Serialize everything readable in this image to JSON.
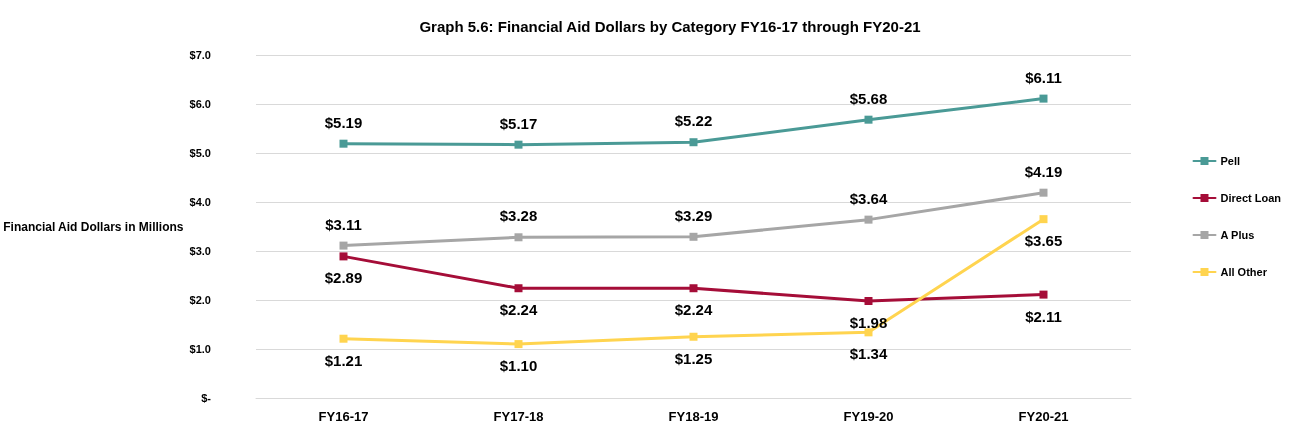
{
  "chart_data": {
    "type": "line",
    "title": "Graph 5.6: Financial Aid Dollars by Category FY16-17 through FY20-21",
    "ylabel": "Financial Aid Dollars in Millions",
    "categories": [
      "FY16-17",
      "FY17-18",
      "FY18-19",
      "FY19-20",
      "FY20-21"
    ],
    "series": [
      {
        "name": "Pell",
        "color": "#4a9a96",
        "values": [
          5.19,
          5.17,
          5.22,
          5.68,
          6.11
        ],
        "value_labels": [
          "$5.19",
          "$5.17",
          "$5.22",
          "$5.68",
          "$6.11"
        ]
      },
      {
        "name": "Direct Loan",
        "color": "#a50d38",
        "values": [
          2.89,
          2.24,
          2.24,
          1.98,
          2.11
        ],
        "value_labels": [
          "$2.89",
          "$2.24",
          "$2.24",
          "$1.98",
          "$2.11"
        ]
      },
      {
        "name": "A Plus",
        "color": "#a6a6a6",
        "values": [
          3.11,
          3.28,
          3.29,
          3.64,
          4.19
        ],
        "value_labels": [
          "$3.11",
          "$3.28",
          "$3.29",
          "$3.64",
          "$4.19"
        ]
      },
      {
        "name": "All Other",
        "color": "#ffd44f",
        "values": [
          1.21,
          1.1,
          1.25,
          1.34,
          3.65
        ],
        "value_labels": [
          "$1.21",
          "$1.10",
          "$1.25",
          "$1.34",
          "$3.65"
        ]
      }
    ],
    "ylim": [
      0,
      7
    ],
    "yticks": [
      {
        "value": 0,
        "label": "$-"
      },
      {
        "value": 1,
        "label": "$1.0"
      },
      {
        "value": 2,
        "label": "$2.0"
      },
      {
        "value": 3,
        "label": "$3.0"
      },
      {
        "value": 4,
        "label": "$4.0"
      },
      {
        "value": 5,
        "label": "$5.0"
      },
      {
        "value": 6,
        "label": "$6.0"
      },
      {
        "value": 7,
        "label": "$7.0"
      }
    ],
    "grid": "y",
    "legend": "right",
    "marker": "square",
    "line_style": "solid"
  }
}
